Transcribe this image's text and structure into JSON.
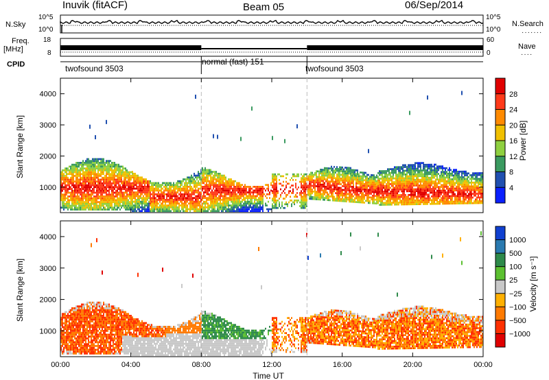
{
  "header": {
    "station": "Inuvik (fitACF)",
    "beam": "Beam 05",
    "date": "06/Sep/2014"
  },
  "panels": {
    "nsky": {
      "label": "N.Sky",
      "left_ticks": [
        "10^5",
        "10^0"
      ],
      "right_ticks": [
        "10^5",
        "10^0"
      ],
      "right_label": "N.Search"
    },
    "freq": {
      "label_top": "Freq.",
      "label_unit": "[MHz]",
      "left_ticks": [
        "18",
        "8"
      ],
      "right_ticks": [
        "60",
        "0"
      ],
      "right_label": "Nave"
    },
    "cpid": {
      "label": "CPID",
      "segments": [
        {
          "name": "twofsound 3503",
          "start_hour": 0,
          "end_hour": 8
        },
        {
          "name": "normal (fast) 151",
          "start_hour": 8,
          "end_hour": 14
        },
        {
          "name": "twofsound 3503",
          "start_hour": 14,
          "end_hour": 24
        }
      ]
    }
  },
  "colorbars": {
    "power": {
      "label": "Power [dB]",
      "ticks": [
        "28",
        "24",
        "20",
        "16",
        "12",
        "8",
        "4"
      ],
      "colors": [
        "#e00000",
        "#ff3a1a",
        "#ff8a00",
        "#f0c000",
        "#8fd040",
        "#3a9a60",
        "#2050b0",
        "#0a20ff"
      ]
    },
    "velocity": {
      "label": "Velocity [m s⁻¹]",
      "ticks": [
        "1000",
        "500",
        "100",
        "25",
        "−25",
        "−100",
        "−500",
        "−1000"
      ],
      "colors": [
        "#1040d0",
        "#2a7ab0",
        "#2e8a4a",
        "#5cc030",
        "#c8c8c8",
        "#ffb000",
        "#ff7a00",
        "#ff3000",
        "#e00000"
      ]
    }
  },
  "chart_data": [
    {
      "type": "heatmap",
      "title": "",
      "xlabel": "Time UT",
      "ylabel": "Slant Range [km]",
      "x_ticks": [
        "00:00",
        "04:00",
        "08:00",
        "12:00",
        "16:00",
        "20:00",
        "00:00"
      ],
      "xlim": [
        0,
        24
      ],
      "y_ticks": [
        1000,
        2000,
        3000,
        4000
      ],
      "ylim": [
        180,
        4500
      ],
      "quantity": "power",
      "echo_regions": [
        {
          "x": [
            0,
            8
          ],
          "y": [
            300,
            1800
          ],
          "level": "24-32 dB core",
          "peak_range_km": 1000
        },
        {
          "x": [
            8,
            12
          ],
          "y": [
            200,
            1500
          ],
          "level": "24-32 dB core",
          "peak_range_km": 900
        },
        {
          "x": [
            12,
            14
          ],
          "y": [
            300,
            1600
          ],
          "level": "4-16 dB scattered"
        },
        {
          "x": [
            14,
            18
          ],
          "y": [
            700,
            1800
          ],
          "level": "16-32 dB",
          "peak_range_km": 1100
        },
        {
          "x": [
            18,
            24
          ],
          "y": [
            400,
            1900
          ],
          "level": "20-32 dB",
          "peak_range_km": 900
        }
      ]
    },
    {
      "type": "heatmap",
      "title": "",
      "xlabel": "Time UT",
      "ylabel": "Slant Range [km]",
      "x_ticks": [
        "00:00",
        "04:00",
        "08:00",
        "12:00",
        "16:00",
        "20:00",
        "00:00"
      ],
      "xlim": [
        0,
        24
      ],
      "y_ticks": [
        1000,
        2000,
        3000,
        4000
      ],
      "ylim": [
        180,
        4500
      ],
      "quantity": "velocity",
      "echo_regions": [
        {
          "x": [
            0,
            6
          ],
          "y": [
            300,
            1800
          ],
          "level": "-100 to -500 m/s"
        },
        {
          "x": [
            4,
            8
          ],
          "y": [
            200,
            900
          ],
          "level": "-25 to 25 m/s (ground scatter)"
        },
        {
          "x": [
            8,
            12
          ],
          "y": [
            400,
            1800
          ],
          "level": "100 to 500 m/s"
        },
        {
          "x": [
            14,
            18
          ],
          "y": [
            600,
            1700
          ],
          "level": "-100 to -500 m/s"
        },
        {
          "x": [
            18,
            24
          ],
          "y": [
            400,
            1800
          ],
          "level": "-100 to -500 m/s"
        }
      ]
    }
  ]
}
